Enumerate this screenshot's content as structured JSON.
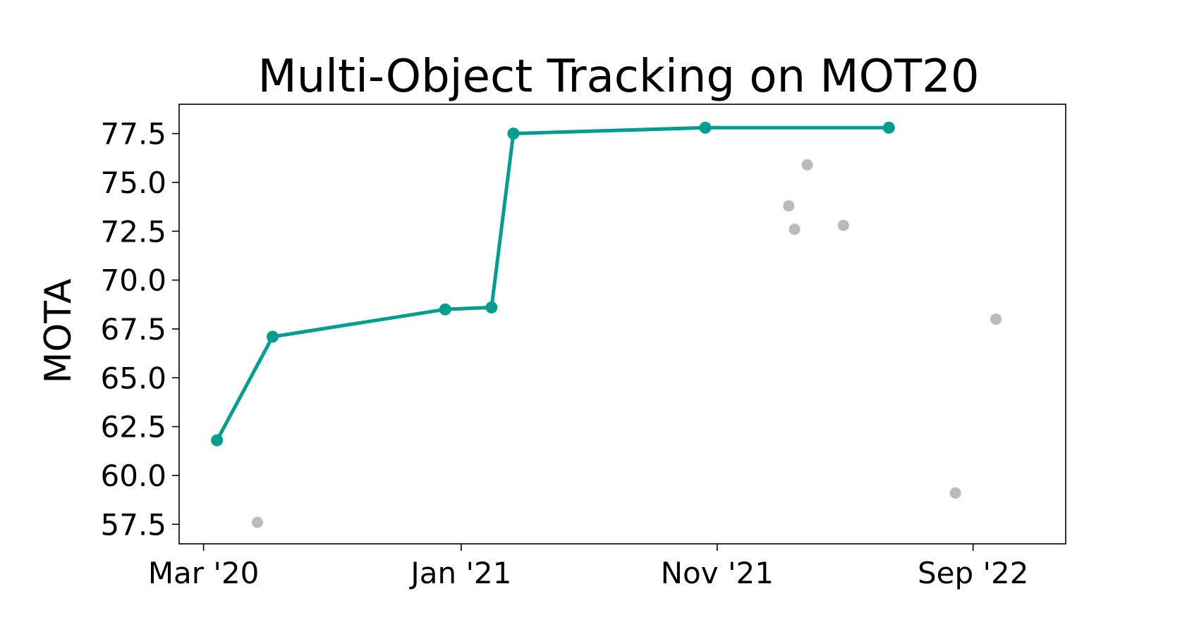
{
  "chart_data": {
    "type": "scatter",
    "title": "Multi-Object Tracking on MOT20",
    "xlabel": "",
    "ylabel": "MOTA",
    "x_axis": {
      "kind": "date",
      "range": [
        "2020-02-01",
        "2022-12-20"
      ],
      "ticks": [
        {
          "value": "2020-03-01",
          "label": "Mar '20"
        },
        {
          "value": "2021-01-01",
          "label": "Jan '21"
        },
        {
          "value": "2021-11-01",
          "label": "Nov '21"
        },
        {
          "value": "2022-09-01",
          "label": "Sep '22"
        }
      ]
    },
    "y_axis": {
      "range": [
        56.5,
        79.0
      ],
      "ticks": [
        {
          "value": 57.5,
          "label": "57.5"
        },
        {
          "value": 60.0,
          "label": "60.0"
        },
        {
          "value": 62.5,
          "label": "62.5"
        },
        {
          "value": 65.0,
          "label": "65.0"
        },
        {
          "value": 67.5,
          "label": "67.5"
        },
        {
          "value": 70.0,
          "label": "70.0"
        },
        {
          "value": 72.5,
          "label": "72.5"
        },
        {
          "value": 75.0,
          "label": "75.0"
        },
        {
          "value": 77.5,
          "label": "77.5"
        }
      ]
    },
    "grid": false,
    "legend": false,
    "series": [
      {
        "role": "state-of-the-art",
        "style": "line-markers",
        "color": "#009e8e",
        "points": [
          {
            "x": "2020-03-17",
            "y": 61.8
          },
          {
            "x": "2020-05-22",
            "y": 67.1
          },
          {
            "x": "2020-12-13",
            "y": 68.5
          },
          {
            "x": "2021-02-06",
            "y": 68.6
          },
          {
            "x": "2021-03-04",
            "y": 77.5
          },
          {
            "x": "2021-10-18",
            "y": 77.8
          },
          {
            "x": "2022-05-24",
            "y": 77.8
          }
        ]
      },
      {
        "role": "other",
        "style": "markers",
        "color": "#bbbbbb",
        "points": [
          {
            "x": "2020-05-04",
            "y": 57.6
          },
          {
            "x": "2022-01-25",
            "y": 73.8
          },
          {
            "x": "2022-02-01",
            "y": 72.6
          },
          {
            "x": "2022-02-16",
            "y": 75.9
          },
          {
            "x": "2022-03-31",
            "y": 72.8
          },
          {
            "x": "2022-08-11",
            "y": 59.1
          },
          {
            "x": "2022-09-28",
            "y": 68.0
          }
        ]
      }
    ]
  }
}
